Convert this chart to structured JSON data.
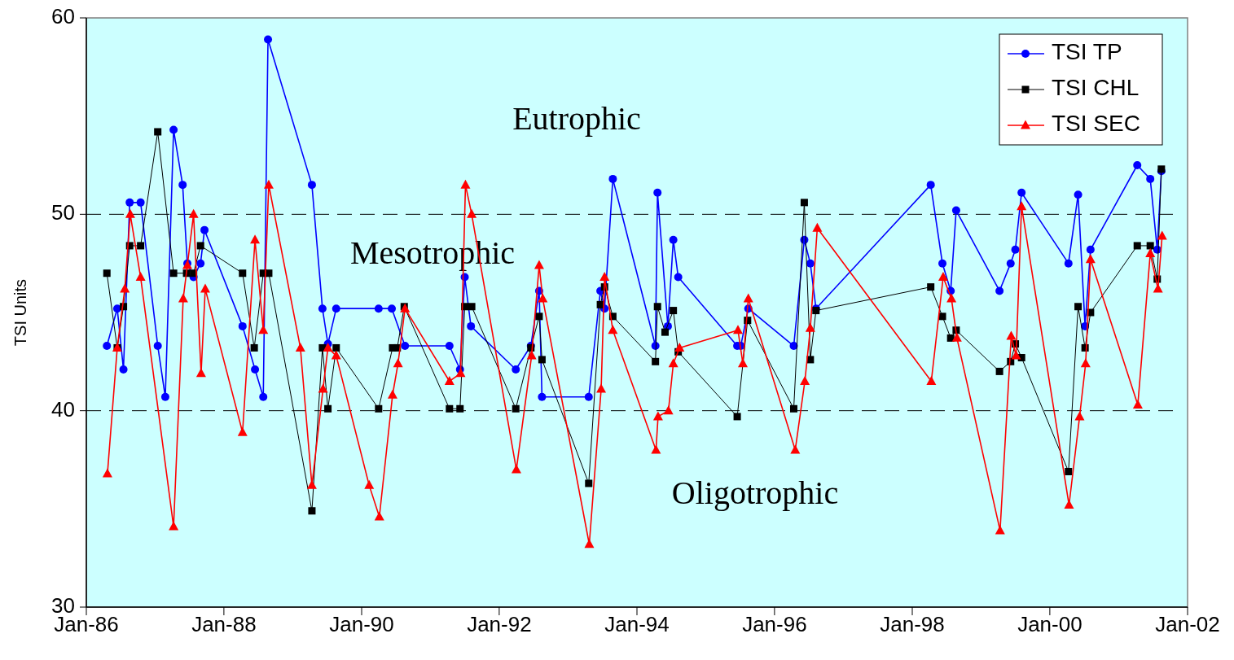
{
  "chart_data": {
    "type": "line",
    "ylabel": "TSI Units",
    "xlim": [
      "1986-01-01",
      "2002-01-01"
    ],
    "xticks": [
      {
        "value": "1986-01-01",
        "label": "Jan-86"
      },
      {
        "value": "1988-01-01",
        "label": "Jan-88"
      },
      {
        "value": "1990-01-01",
        "label": "Jan-90"
      },
      {
        "value": "1992-01-01",
        "label": "Jan-92"
      },
      {
        "value": "1994-01-01",
        "label": "Jan-94"
      },
      {
        "value": "1996-01-01",
        "label": "Jan-96"
      },
      {
        "value": "1998-01-01",
        "label": "Jan-98"
      },
      {
        "value": "2000-01-01",
        "label": "Jan-00"
      },
      {
        "value": "2002-01-01",
        "label": "Jan-02"
      }
    ],
    "ylim": [
      30,
      60
    ],
    "yticks": [
      30,
      40,
      50,
      60
    ],
    "grid": false,
    "legend": "top right",
    "ref_lines": [
      {
        "axis": "y",
        "value": 50,
        "color": "#000000",
        "line_style": "dashed"
      },
      {
        "axis": "y",
        "value": 40,
        "color": "#000000",
        "line_style": "dashed"
      }
    ],
    "annotations": [
      "Eutrophic",
      "Mesotrophic",
      "Oligotrophic"
    ],
    "series": [
      {
        "name": "TSI TP",
        "color": "#0000ff",
        "marker": "circle",
        "x": [
          "1986-04-20",
          "1986-06-14",
          "1986-07-17",
          "1986-08-19",
          "1986-10-16",
          "1987-01-15",
          "1987-02-24",
          "1987-04-09",
          "1987-05-27",
          "1987-06-21",
          "1987-07-24",
          "1987-08-30",
          "1987-09-20",
          "1988-04-09",
          "1988-06-14",
          "1988-07-28",
          "1988-08-22",
          "1989-04-12",
          "1989-06-07",
          "1989-07-06",
          "1989-08-19",
          "1990-04-01",
          "1990-06-10",
          "1990-08-19",
          "1991-04-12",
          "1991-06-07",
          "1991-07-02",
          "1991-08-04",
          "1992-03-29",
          "1992-06-17",
          "1992-07-31",
          "1992-08-15",
          "1993-04-20",
          "1993-06-21",
          "1993-07-13",
          "1993-08-26",
          "1994-04-09",
          "1994-04-20",
          "1994-06-14",
          "1994-07-13",
          "1994-08-08",
          "1995-06-17",
          "1995-07-06",
          "1995-08-15",
          "1996-04-12",
          "1996-06-07",
          "1996-07-09",
          "1996-08-08",
          "1998-04-09",
          "1998-06-10",
          "1998-07-24",
          "1998-08-22",
          "1999-04-09",
          "1999-06-07",
          "1999-07-02",
          "1999-08-04",
          "2000-04-09",
          "2000-05-30",
          "2000-07-06",
          "2000-08-04",
          "2001-04-09",
          "2001-06-17",
          "2001-07-24",
          "2001-08-15"
        ],
        "values": [
          43.3,
          45.2,
          42.1,
          50.6,
          50.6,
          43.3,
          40.7,
          54.3,
          51.5,
          47.5,
          46.8,
          47.5,
          49.2,
          44.3,
          42.1,
          40.7,
          58.9,
          51.5,
          45.2,
          43.4,
          45.2,
          45.2,
          45.2,
          43.3,
          43.3,
          42.1,
          46.8,
          44.3,
          42.1,
          43.3,
          46.1,
          40.7,
          40.7,
          46.1,
          45.2,
          51.8,
          43.3,
          51.1,
          44.3,
          48.7,
          46.8,
          43.3,
          43.3,
          45.2,
          43.3,
          48.7,
          47.5,
          45.2,
          51.5,
          47.5,
          46.1,
          50.2,
          46.1,
          47.5,
          48.2,
          51.1,
          47.5,
          51.0,
          44.3,
          48.2,
          52.5,
          51.8,
          48.2,
          52.2
        ]
      },
      {
        "name": "TSI CHL",
        "color": "#000000",
        "marker": "square",
        "x": [
          "1986-04-20",
          "1986-06-14",
          "1986-07-17",
          "1986-08-19",
          "1986-10-16",
          "1987-01-15",
          "1987-04-09",
          "1987-06-17",
          "1987-07-24",
          "1987-08-30",
          "1988-04-09",
          "1988-06-10",
          "1988-07-28",
          "1988-08-26",
          "1989-04-12",
          "1989-06-07",
          "1989-07-06",
          "1989-08-19",
          "1990-04-01",
          "1990-06-14",
          "1990-07-09",
          "1990-08-15",
          "1991-04-12",
          "1991-06-07",
          "1991-07-02",
          "1991-08-08",
          "1992-03-29",
          "1992-06-17",
          "1992-07-31",
          "1992-08-15",
          "1993-04-20",
          "1993-06-21",
          "1993-07-13",
          "1993-08-26",
          "1994-04-09",
          "1994-04-20",
          "1994-05-30",
          "1994-07-13",
          "1994-08-08",
          "1995-06-17",
          "1995-08-11",
          "1996-04-12",
          "1996-06-07",
          "1996-07-09",
          "1996-08-08",
          "1998-04-09",
          "1998-06-10",
          "1998-07-24",
          "1998-08-22",
          "1999-04-09",
          "1999-06-07",
          "1999-07-02",
          "1999-08-04",
          "2000-04-09",
          "2000-05-30",
          "2000-07-06",
          "2000-08-04",
          "2001-04-09",
          "2001-06-17",
          "2001-07-24",
          "2001-08-15"
        ],
        "values": [
          47.0,
          43.2,
          45.3,
          48.4,
          48.4,
          54.2,
          47.0,
          47.0,
          47.0,
          48.4,
          47.0,
          43.2,
          47.0,
          47.0,
          34.9,
          43.2,
          40.1,
          43.2,
          40.1,
          43.2,
          43.2,
          45.3,
          40.1,
          40.1,
          45.3,
          45.3,
          40.1,
          43.2,
          44.8,
          42.6,
          36.3,
          45.4,
          46.3,
          44.8,
          42.5,
          45.3,
          44.0,
          45.1,
          43.0,
          39.7,
          44.6,
          40.1,
          50.6,
          42.6,
          45.1,
          46.3,
          44.8,
          43.7,
          44.1,
          42.0,
          42.5,
          43.4,
          42.7,
          36.9,
          45.3,
          43.2,
          45.0,
          48.4,
          48.4,
          46.7,
          52.3
        ]
      },
      {
        "name": "TSI SEC",
        "color": "#ff0000",
        "marker": "triangle",
        "x": [
          "1986-04-23",
          "1986-06-14",
          "1986-07-24",
          "1986-08-22",
          "1986-10-16",
          "1987-04-09",
          "1987-05-30",
          "1987-06-21",
          "1987-07-24",
          "1987-09-02",
          "1987-09-24",
          "1988-04-09",
          "1988-06-14",
          "1988-07-28",
          "1988-08-26",
          "1989-02-10",
          "1989-04-12",
          "1989-06-10",
          "1989-07-06",
          "1989-08-19",
          "1990-02-10",
          "1990-04-05",
          "1990-06-14",
          "1990-07-13",
          "1990-08-19",
          "1991-04-12",
          "1991-06-10",
          "1991-07-06",
          "1991-08-08",
          "1992-04-01",
          "1992-06-21",
          "1992-07-31",
          "1992-08-19",
          "1993-04-23",
          "1993-06-25",
          "1993-07-13",
          "1993-08-26",
          "1994-04-12",
          "1994-04-23",
          "1994-06-17",
          "1994-07-13",
          "1994-08-15",
          "1995-06-21",
          "1995-07-17",
          "1995-08-15",
          "1996-04-20",
          "1996-06-10",
          "1996-07-09",
          "1996-08-15",
          "1998-04-12",
          "1998-06-14",
          "1998-07-28",
          "1998-08-26",
          "1999-04-12",
          "1999-06-10",
          "1999-07-06",
          "1999-08-04",
          "2000-04-12",
          "2000-06-07",
          "2000-07-09",
          "2000-08-04",
          "2001-04-12",
          "2001-06-17",
          "2001-07-28",
          "2001-08-19"
        ],
        "values": [
          36.8,
          43.2,
          46.2,
          50.0,
          46.8,
          34.1,
          45.7,
          47.4,
          50.0,
          41.9,
          46.2,
          38.9,
          48.7,
          44.1,
          51.5,
          43.2,
          36.2,
          41.1,
          43.2,
          42.8,
          36.2,
          34.6,
          40.8,
          42.4,
          45.2,
          41.5,
          41.9,
          51.5,
          50.0,
          37.0,
          42.8,
          47.4,
          45.7,
          33.2,
          41.1,
          46.8,
          44.1,
          38.0,
          39.7,
          40.0,
          42.4,
          43.2,
          44.1,
          42.4,
          45.7,
          38.0,
          41.5,
          44.2,
          49.3,
          41.5,
          46.8,
          45.7,
          43.7,
          33.9,
          43.8,
          42.8,
          50.4,
          35.2,
          39.7,
          42.4,
          47.7,
          40.3,
          48.0,
          46.2,
          48.9
        ]
      }
    ]
  }
}
